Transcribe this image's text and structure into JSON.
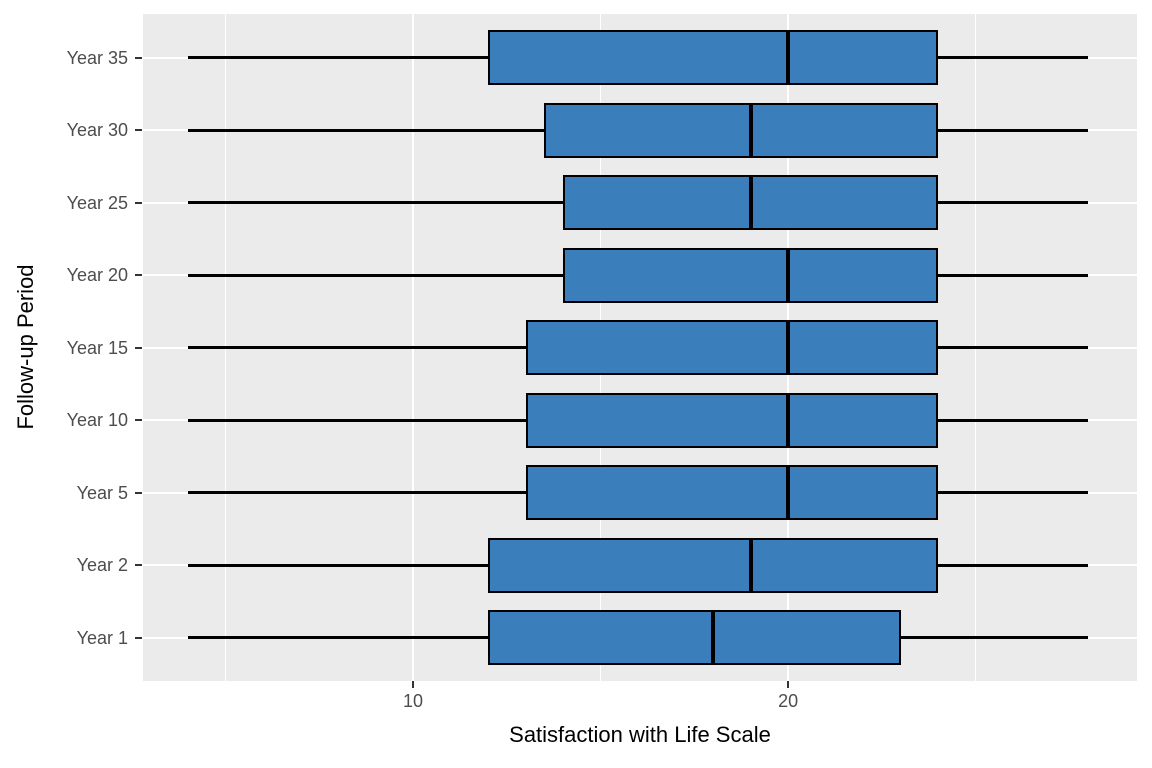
{
  "chart_data": {
    "type": "boxplot",
    "orientation": "horizontal",
    "xlabel": "Satisfaction with Life Scale",
    "ylabel": "Follow-up Period",
    "categories": [
      "Year 1",
      "Year 2",
      "Year 5",
      "Year 10",
      "Year 15",
      "Year 20",
      "Year 25",
      "Year 30",
      "Year 35"
    ],
    "series": [
      {
        "category": "Year 1",
        "whisker_low": 4,
        "q1": 12,
        "median": 18,
        "q3": 23,
        "whisker_high": 28
      },
      {
        "category": "Year 2",
        "whisker_low": 4,
        "q1": 12,
        "median": 19,
        "q3": 24,
        "whisker_high": 28
      },
      {
        "category": "Year 5",
        "whisker_low": 4,
        "q1": 13,
        "median": 20,
        "q3": 24,
        "whisker_high": 28
      },
      {
        "category": "Year 10",
        "whisker_low": 4,
        "q1": 13,
        "median": 20,
        "q3": 24,
        "whisker_high": 28
      },
      {
        "category": "Year 15",
        "whisker_low": 4,
        "q1": 13,
        "median": 20,
        "q3": 24,
        "whisker_high": 28
      },
      {
        "category": "Year 20",
        "whisker_low": 4,
        "q1": 14,
        "median": 20,
        "q3": 24,
        "whisker_high": 28
      },
      {
        "category": "Year 25",
        "whisker_low": 4,
        "q1": 14,
        "median": 19,
        "q3": 24,
        "whisker_high": 28
      },
      {
        "category": "Year 30",
        "whisker_low": 4,
        "q1": 13.5,
        "median": 19,
        "q3": 24,
        "whisker_high": 28
      },
      {
        "category": "Year 35",
        "whisker_low": 4,
        "q1": 12,
        "median": 20,
        "q3": 24,
        "whisker_high": 28
      }
    ],
    "x_axis": {
      "tick_labels": [
        "10",
        "20"
      ],
      "ticks": [
        10,
        20
      ],
      "minor_gridlines": [
        5,
        15,
        25
      ],
      "range": [
        2.8,
        29.3
      ],
      "grid": true
    },
    "layout_hints": {
      "legend": "none",
      "panel_background": "#EBEBEB",
      "gridline_color": "#FFFFFF"
    },
    "colors": {
      "box_fill": "#3A7EBB",
      "box_border": "#000000",
      "median_line": "#000000",
      "whisker": "#000000",
      "tick_label": "#4D4D4D",
      "axis_title": "#000000"
    }
  }
}
